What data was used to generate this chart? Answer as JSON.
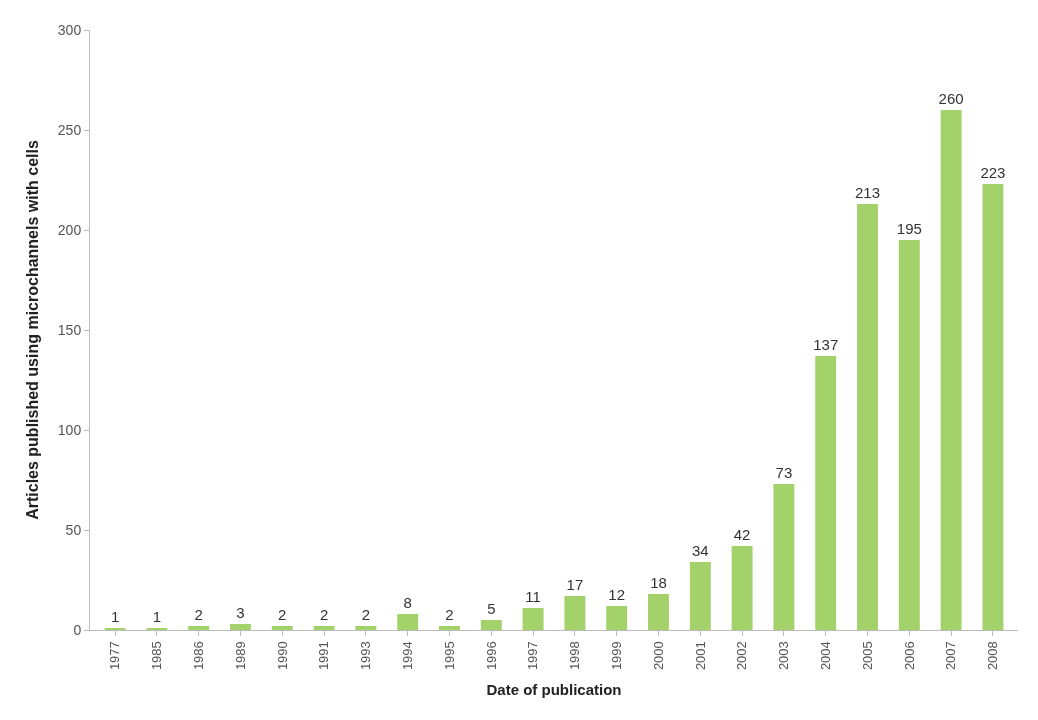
{
  "chart_data": {
    "type": "bar",
    "xlabel": "Date of publication",
    "ylabel": "Articles published using microchannels with cells",
    "categories": [
      "1977",
      "1985",
      "1986",
      "1989",
      "1990",
      "1991",
      "1993",
      "1994",
      "1995",
      "1996",
      "1997",
      "1998",
      "1999",
      "2000",
      "2001",
      "2002",
      "2003",
      "2004",
      "2005",
      "2006",
      "2007",
      "2008"
    ],
    "values": [
      1,
      1,
      2,
      3,
      2,
      2,
      2,
      8,
      2,
      5,
      11,
      17,
      12,
      18,
      34,
      42,
      73,
      137,
      213,
      195,
      260,
      223
    ],
    "color": "#a3d16a",
    "ylim": [
      0,
      300
    ],
    "yticks": [
      0,
      50,
      100,
      150,
      200,
      250,
      300
    ],
    "data_labels": true
  }
}
